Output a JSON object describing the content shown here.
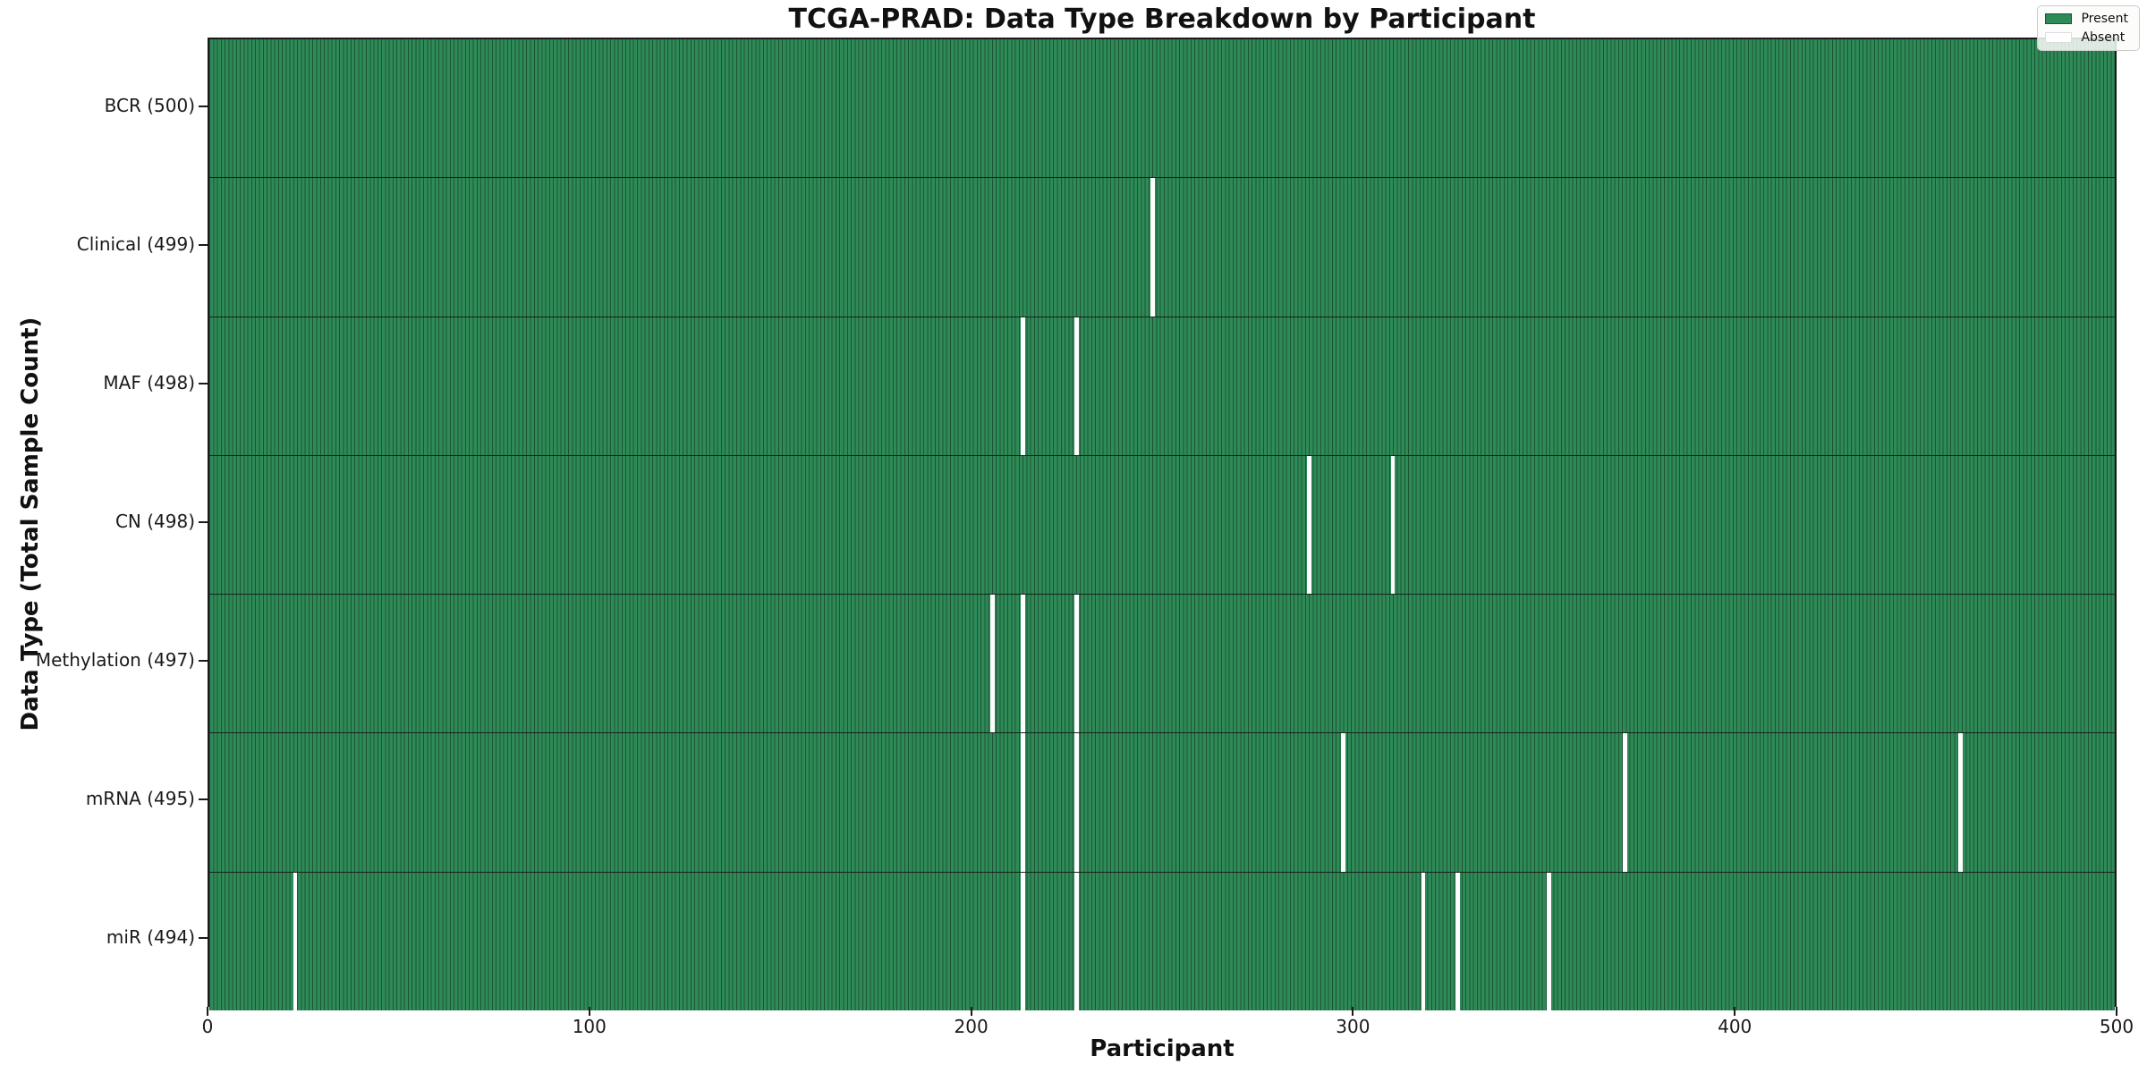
{
  "title": "TCGA-PRAD: Data Type Breakdown by Participant",
  "axes": {
    "x_label": "Participant",
    "y_label": "Data Type (Total Sample Count)"
  },
  "legend": {
    "entries": [
      {
        "label": "Present",
        "color": "#2e8b57"
      },
      {
        "label": "Absent",
        "color": "#ffffff"
      }
    ]
  },
  "chart_data": {
    "type": "heatmap",
    "title": "TCGA-PRAD: Data Type Breakdown by Participant",
    "xlabel": "Participant",
    "ylabel": "Data Type (Total Sample Count)",
    "x_range": [
      0,
      500
    ],
    "x_ticks": [
      0,
      100,
      200,
      300,
      400,
      500
    ],
    "n_participants": 500,
    "legend_position": "upper right",
    "grid": false,
    "colors": {
      "present": "#2e8b57",
      "bar_edge": "#1c5434",
      "absent": "#ffffff"
    },
    "rows": [
      {
        "label": "BCR (500)",
        "data_type": "BCR",
        "total": 500,
        "absent_participants": []
      },
      {
        "label": "Clinical (499)",
        "data_type": "Clinical",
        "total": 499,
        "absent_participants": [
          247
        ]
      },
      {
        "label": "MAF (498)",
        "data_type": "MAF",
        "total": 498,
        "absent_participants": [
          213,
          227
        ]
      },
      {
        "label": "CN (498)",
        "data_type": "CN",
        "total": 498,
        "absent_participants": [
          288,
          310
        ]
      },
      {
        "label": "Methylation (497)",
        "data_type": "Methylation",
        "total": 497,
        "absent_participants": [
          205,
          213,
          227
        ]
      },
      {
        "label": "mRNA (495)",
        "data_type": "mRNA",
        "total": 495,
        "absent_participants": [
          213,
          227,
          297,
          371,
          459
        ]
      },
      {
        "label": "miR (494)",
        "data_type": "miR",
        "total": 494,
        "absent_participants": [
          22,
          213,
          227,
          318,
          327,
          351
        ]
      }
    ]
  }
}
